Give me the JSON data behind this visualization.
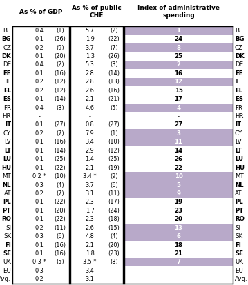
{
  "countries": [
    "BE",
    "BG",
    "CZ",
    "DK",
    "DE",
    "EE",
    "IE",
    "EL",
    "ES",
    "FR",
    "HR",
    "IT",
    "CY",
    "LV",
    "LT",
    "LU",
    "HU",
    "MT",
    "NL",
    "AT",
    "PL",
    "PT",
    "RO",
    "SI",
    "SK",
    "FI",
    "SE",
    "UK",
    "EU",
    "Avg."
  ],
  "col1_val": [
    "0.4",
    "0.1",
    "0.2",
    "0.1",
    "0.4",
    "0.1",
    "0.2",
    "0.2",
    "0.1",
    "0.4",
    "-",
    "0.1",
    "0.2",
    "0.1",
    "0.1",
    "0.1",
    "0.1",
    "0.2 *",
    "0.3",
    "0.2",
    "0.1",
    "0.1",
    "0.1",
    "0.2",
    "0.3",
    "0.1",
    "0.1",
    "0.3 *",
    "0.3",
    "0.2"
  ],
  "col1_rank": [
    "(1)",
    "(26)",
    "(9)",
    "(20)",
    "(2)",
    "(16)",
    "(12)",
    "(12)",
    "(14)",
    "(3)",
    "",
    "(27)",
    "(7)",
    "(16)",
    "(14)",
    "(25)",
    "(22)",
    "(10)",
    "(4)",
    "(7)",
    "(22)",
    "(20)",
    "(22)",
    "(11)",
    "(6)",
    "(16)",
    "(16)",
    "(5)",
    "",
    ""
  ],
  "col2_val": [
    "5.7",
    "1.9",
    "3.7",
    "1.3",
    "5.3",
    "2.8",
    "2.8",
    "2.6",
    "2.1",
    "4.6",
    "-",
    "0.8",
    "7.9",
    "3.4",
    "2.9",
    "1.4",
    "2.1",
    "3.4 *",
    "3.7",
    "3.1",
    "2.3",
    "1.7",
    "2.3",
    "2.6",
    "4.8",
    "2.1",
    "1.8",
    "3.5 *",
    "3.4",
    "3.1"
  ],
  "col2_rank": [
    "(2)",
    "(22)",
    "(7)",
    "(26)",
    "(3)",
    "(14)",
    "(13)",
    "(16)",
    "(21)",
    "(5)",
    "",
    "(27)",
    "(1)",
    "(10)",
    "(12)",
    "(25)",
    "(19)",
    "(9)",
    "(6)",
    "(11)",
    "(17)",
    "(24)",
    "(18)",
    "(15)",
    "(4)",
    "(20)",
    "(23)",
    "(8)",
    "",
    ""
  ],
  "col3_val": [
    "1",
    "24",
    "8",
    "25",
    "2",
    "16",
    "12",
    "15",
    "17",
    "4",
    "-",
    "27",
    "3",
    "11",
    "14",
    "26",
    "22",
    "10",
    "5",
    "9",
    "19",
    "23",
    "20",
    "13",
    "6",
    "18",
    "21",
    "7",
    "",
    ""
  ],
  "col3_shaded": [
    true,
    false,
    true,
    false,
    true,
    false,
    true,
    false,
    false,
    true,
    false,
    false,
    true,
    true,
    false,
    false,
    false,
    true,
    true,
    true,
    false,
    false,
    false,
    true,
    true,
    false,
    false,
    true,
    false,
    false
  ],
  "shaded_color": "#b8a9c9",
  "text_color_shaded": "#ffffff",
  "text_color_normal": "#000000",
  "bold_rows": [
    1,
    3,
    5,
    7,
    8,
    11,
    14,
    15,
    16,
    18,
    20,
    21,
    22,
    25,
    26
  ],
  "background_color": "#ffffff",
  "figwidth": 3.59,
  "figheight": 4.13,
  "dpi": 100
}
